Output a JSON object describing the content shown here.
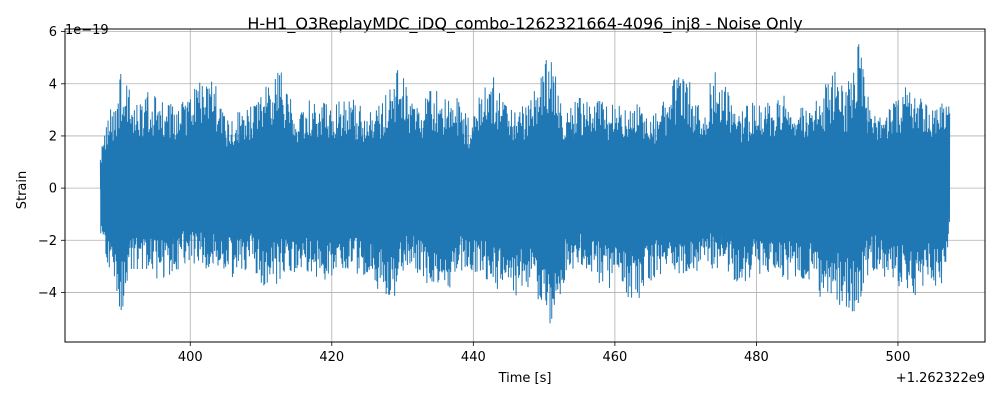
{
  "chart_data": {
    "type": "line",
    "title": "H-H1_O3ReplayMDC_iDQ_combo-1262321664-4096_inj8 - Noise Only",
    "xlabel": "Time [s]",
    "ylabel": "Strain",
    "x_offset_label": "+1.262322e9",
    "y_scale_label": "1e−19",
    "xlim": [
      382.3,
      512.3
    ],
    "ylim": [
      -5.9,
      6.1
    ],
    "x_ticks": [
      400,
      420,
      440,
      460,
      480,
      500
    ],
    "x_tick_labels": [
      "400",
      "420",
      "440",
      "460",
      "480",
      "500"
    ],
    "y_ticks": [
      -4,
      -2,
      0,
      2,
      4,
      6
    ],
    "y_tick_labels": [
      "−4",
      "−2",
      "0",
      "2",
      "4",
      "6"
    ],
    "grid": true,
    "series": [
      {
        "color": "#1f77b4",
        "x_start": 387.3,
        "x_end": 507.3,
        "noise_sigma": 1.0,
        "envelope_top": [
          [
            387.3,
            1.3
          ],
          [
            388.2,
            3.0
          ],
          [
            389.5,
            3.3
          ],
          [
            390.5,
            4.9
          ],
          [
            392.0,
            3.1
          ],
          [
            394.0,
            3.7
          ],
          [
            397.0,
            3.3
          ],
          [
            399.0,
            3.3
          ],
          [
            402.5,
            4.8
          ],
          [
            405.0,
            2.9
          ],
          [
            408.0,
            3.0
          ],
          [
            410.0,
            3.6
          ],
          [
            412.5,
            4.8
          ],
          [
            415.0,
            3.0
          ],
          [
            417.0,
            3.4
          ],
          [
            420.0,
            3.3
          ],
          [
            423.0,
            3.4
          ],
          [
            426.0,
            2.9
          ],
          [
            429.5,
            4.7
          ],
          [
            432.0,
            3.1
          ],
          [
            434.0,
            3.8
          ],
          [
            437.5,
            3.6
          ],
          [
            439.5,
            2.7
          ],
          [
            442.5,
            4.5
          ],
          [
            445.0,
            3.0
          ],
          [
            448.0,
            3.3
          ],
          [
            450.7,
            5.3
          ],
          [
            453.0,
            3.0
          ],
          [
            456.0,
            3.7
          ],
          [
            459.0,
            3.2
          ],
          [
            463.0,
            3.4
          ],
          [
            466.0,
            3.0
          ],
          [
            469.5,
            4.8
          ],
          [
            472.0,
            3.1
          ],
          [
            474.5,
            4.7
          ],
          [
            477.0,
            3.0
          ],
          [
            480.0,
            3.4
          ],
          [
            482.0,
            3.3
          ],
          [
            484.0,
            4.2
          ],
          [
            487.0,
            3.1
          ],
          [
            489.5,
            3.8
          ],
          [
            491.0,
            4.8
          ],
          [
            492.5,
            3.6
          ],
          [
            494.5,
            5.6
          ],
          [
            496.0,
            3.3
          ],
          [
            498.0,
            2.7
          ],
          [
            501.0,
            4.0
          ],
          [
            504.0,
            3.6
          ],
          [
            506.0,
            3.4
          ],
          [
            507.3,
            3.3
          ]
        ],
        "envelope_bottom": [
          [
            387.3,
            -1.8
          ],
          [
            388.0,
            -2.7
          ],
          [
            389.5,
            -4.3
          ],
          [
            390.4,
            -4.8
          ],
          [
            392.0,
            -3.1
          ],
          [
            393.5,
            -3.3
          ],
          [
            396.0,
            -3.6
          ],
          [
            399.0,
            -3.0
          ],
          [
            401.5,
            -3.1
          ],
          [
            403.5,
            -3.1
          ],
          [
            406.0,
            -3.5
          ],
          [
            408.5,
            -3.0
          ],
          [
            410.7,
            -4.0
          ],
          [
            413.0,
            -3.5
          ],
          [
            416.0,
            -3.1
          ],
          [
            419.0,
            -3.6
          ],
          [
            422.0,
            -3.1
          ],
          [
            425.0,
            -3.5
          ],
          [
            428.5,
            -4.4
          ],
          [
            431.0,
            -3.1
          ],
          [
            434.0,
            -3.8
          ],
          [
            436.3,
            -4.0
          ],
          [
            439.0,
            -3.0
          ],
          [
            442.0,
            -3.6
          ],
          [
            445.0,
            -4.4
          ],
          [
            448.0,
            -3.8
          ],
          [
            450.7,
            -5.4
          ],
          [
            453.0,
            -3.5
          ],
          [
            455.0,
            -3.0
          ],
          [
            458.0,
            -3.7
          ],
          [
            461.0,
            -4.1
          ],
          [
            463.0,
            -4.4
          ],
          [
            466.0,
            -3.5
          ],
          [
            469.0,
            -3.5
          ],
          [
            472.0,
            -3.2
          ],
          [
            475.0,
            -3.1
          ],
          [
            478.0,
            -4.0
          ],
          [
            481.0,
            -3.2
          ],
          [
            484.0,
            -3.7
          ],
          [
            487.5,
            -3.6
          ],
          [
            489.5,
            -4.4
          ],
          [
            491.5,
            -4.5
          ],
          [
            494.0,
            -4.8
          ],
          [
            496.0,
            -3.2
          ],
          [
            499.0,
            -3.5
          ],
          [
            502.0,
            -4.2
          ],
          [
            504.5,
            -3.7
          ],
          [
            506.5,
            -4.1
          ],
          [
            507.3,
            -1.3
          ]
        ]
      }
    ]
  }
}
